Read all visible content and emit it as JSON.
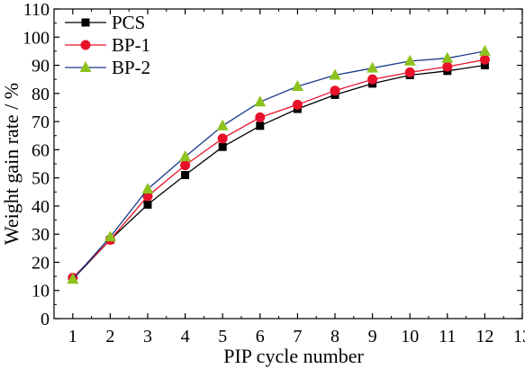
{
  "chart_data": {
    "type": "line",
    "xlabel": "PIP cycle number",
    "ylabel": "Weight gain rate / %",
    "xlim": [
      0.5,
      13
    ],
    "ylim": [
      0,
      110
    ],
    "xticks": [
      1,
      2,
      3,
      4,
      5,
      6,
      7,
      8,
      9,
      10,
      11,
      12,
      13
    ],
    "yticks": [
      0,
      10,
      20,
      30,
      40,
      50,
      60,
      70,
      80,
      90,
      100,
      110
    ],
    "legend_position": "top-left",
    "grid": false,
    "series": [
      {
        "name": "PCS",
        "marker": "square",
        "marker_color": "#000000",
        "line_color": "#000000",
        "x": [
          1,
          2,
          3,
          4,
          5,
          6,
          7,
          8,
          9,
          10,
          11,
          12
        ],
        "values": [
          14.0,
          28.0,
          40.5,
          51.0,
          61.0,
          68.5,
          74.5,
          79.5,
          83.5,
          86.5,
          88.0,
          90.0
        ]
      },
      {
        "name": "BP-1",
        "marker": "circle",
        "marker_color": "#e8102a",
        "line_color": "#e8102a",
        "x": [
          1,
          2,
          3,
          4,
          5,
          6,
          7,
          8,
          9,
          10,
          11,
          12
        ],
        "values": [
          14.5,
          28.0,
          43.5,
          54.5,
          64.0,
          71.5,
          76.0,
          81.0,
          85.0,
          87.5,
          89.5,
          92.0
        ]
      },
      {
        "name": "BP-2",
        "marker": "triangle",
        "marker_color": "#8dc21f",
        "line_color": "#1a3a8a",
        "x": [
          1,
          2,
          3,
          4,
          5,
          6,
          7,
          8,
          9,
          10,
          11,
          12
        ],
        "values": [
          14.0,
          29.0,
          46.0,
          57.5,
          68.5,
          77.0,
          82.5,
          86.5,
          89.0,
          91.5,
          92.5,
          95.0
        ]
      }
    ]
  }
}
